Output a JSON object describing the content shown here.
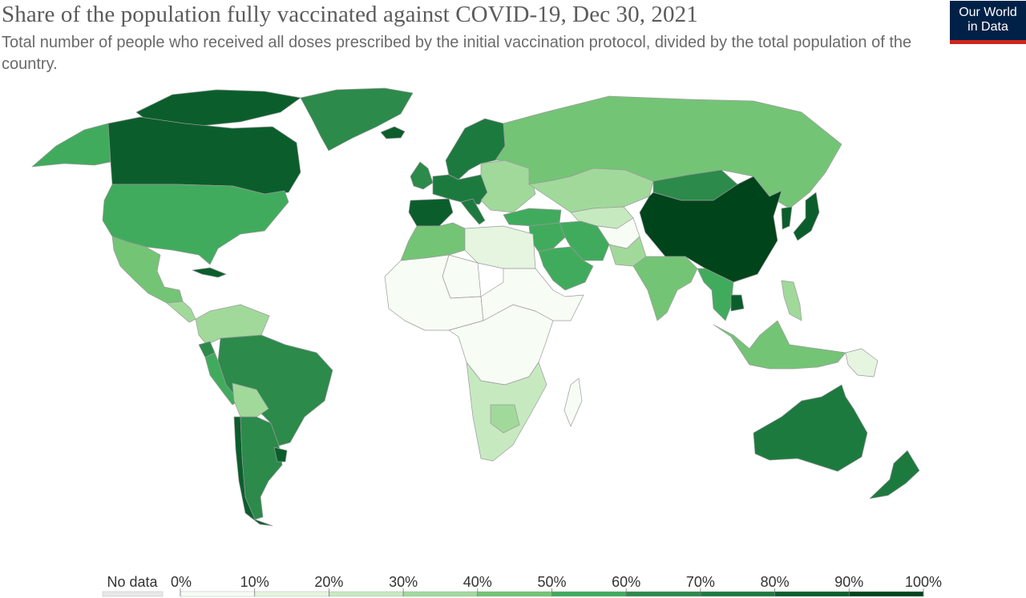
{
  "header": {
    "title": "Share of the population fully vaccinated against COVID-19, Dec 30, 2021",
    "subtitle": "Total number of people who received all doses prescribed by the initial vaccination protocol, divided by the total population of the country.",
    "logo_line1": "Our World",
    "logo_line2": "in Data"
  },
  "colors": {
    "no_data": "#e8e8e8",
    "border": "#9a9a9a",
    "bins": [
      "#f7fcf5",
      "#e5f5e0",
      "#c7e9c0",
      "#a1d99b",
      "#74c476",
      "#41ab5d",
      "#2c8a4b",
      "#1d7a3f",
      "#0b5e2c",
      "#00441b"
    ],
    "logo_bg": "#002147",
    "logo_stripe": "#ce261e"
  },
  "legend": {
    "no_data_label": "No data",
    "tick_labels": [
      "0%",
      "10%",
      "20%",
      "30%",
      "40%",
      "50%",
      "60%",
      "70%",
      "80%",
      "90%",
      "100%"
    ]
  },
  "regions": [
    {
      "id": "canada",
      "bin": 8
    },
    {
      "id": "alaska",
      "bin": 5
    },
    {
      "id": "greenland",
      "bin": 6
    },
    {
      "id": "arctic-islands",
      "bin": 8
    },
    {
      "id": "iceland",
      "bin": 8
    },
    {
      "id": "usa",
      "bin": 5
    },
    {
      "id": "mexico",
      "bin": 4
    },
    {
      "id": "central-america",
      "bin": 3
    },
    {
      "id": "cuba",
      "bin": 8
    },
    {
      "id": "colombia-venezuela",
      "bin": 3
    },
    {
      "id": "brazil",
      "bin": 6
    },
    {
      "id": "peru",
      "bin": 5
    },
    {
      "id": "ecuador",
      "bin": 6
    },
    {
      "id": "bolivia",
      "bin": 3
    },
    {
      "id": "chile",
      "bin": 8
    },
    {
      "id": "argentina",
      "bin": 6
    },
    {
      "id": "uruguay",
      "bin": 8
    },
    {
      "id": "scandinavia",
      "bin": 7
    },
    {
      "id": "uk",
      "bin": 6
    },
    {
      "id": "spain-portugal",
      "bin": 8
    },
    {
      "id": "western-europe",
      "bin": 7
    },
    {
      "id": "eastern-europe",
      "bin": 3
    },
    {
      "id": "italy",
      "bin": 7
    },
    {
      "id": "russia",
      "bin": 4
    },
    {
      "id": "turkey",
      "bin": 5
    },
    {
      "id": "middle-east",
      "bin": 5
    },
    {
      "id": "saudi-arabia",
      "bin": 5
    },
    {
      "id": "iran",
      "bin": 5
    },
    {
      "id": "kazakhstan",
      "bin": 3
    },
    {
      "id": "central-asia",
      "bin": 2
    },
    {
      "id": "afghanistan",
      "bin": 0
    },
    {
      "id": "pakistan",
      "bin": 3
    },
    {
      "id": "india",
      "bin": 4
    },
    {
      "id": "mongolia",
      "bin": 6
    },
    {
      "id": "china",
      "bin": 9
    },
    {
      "id": "japan",
      "bin": 8
    },
    {
      "id": "korea",
      "bin": 8
    },
    {
      "id": "southeast-asia",
      "bin": 5
    },
    {
      "id": "cambodia",
      "bin": 8
    },
    {
      "id": "indonesia",
      "bin": 4
    },
    {
      "id": "philippines",
      "bin": 3
    },
    {
      "id": "png",
      "bin": 1
    },
    {
      "id": "australia",
      "bin": 7
    },
    {
      "id": "new-zealand",
      "bin": 7
    },
    {
      "id": "morocco-algeria",
      "bin": 4
    },
    {
      "id": "egypt-libya",
      "bin": 1
    },
    {
      "id": "west-africa",
      "bin": 0
    },
    {
      "id": "sahara-nodata",
      "bin": 0
    },
    {
      "id": "central-africa",
      "bin": 0
    },
    {
      "id": "east-africa",
      "bin": 0
    },
    {
      "id": "southern-africa",
      "bin": 2
    },
    {
      "id": "botswana",
      "bin": 3
    },
    {
      "id": "madagascar",
      "bin": 0
    }
  ]
}
